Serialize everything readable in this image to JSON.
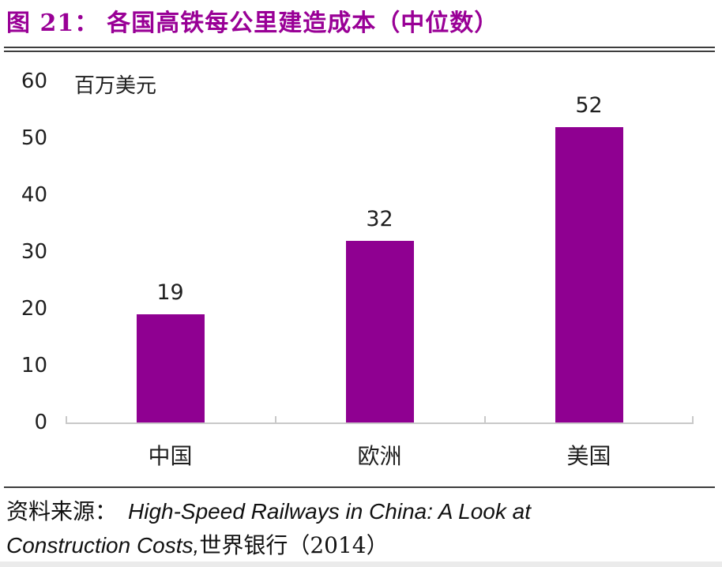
{
  "header": {
    "figure_label": "图 21：",
    "title": "各国高铁每公里建造成本（中位数）"
  },
  "chart_data": {
    "type": "bar",
    "title": "各国高铁每公里建造成本（中位数）",
    "unit_label": "百万美元",
    "categories": [
      "中国",
      "欧洲",
      "美国"
    ],
    "values": [
      19,
      32,
      52
    ],
    "ylim": [
      0,
      60
    ],
    "yticks": [
      0,
      10,
      20,
      30,
      40,
      50,
      60
    ],
    "grid": false,
    "data_labels": true,
    "legend": "none",
    "bar_color": "#8F0091"
  },
  "footer": {
    "source_prefix": "资料来源：",
    "source_line1_italic": "High-Speed Railways in China: A Look at",
    "source_line2_italic": "Construction Costs,",
    "source_line2_rest": "世界银行（2014）"
  },
  "colors": {
    "title": "#990096",
    "bar": "#8F0091",
    "separator": "#3d3d3d",
    "axis_line": "#c9c9c9",
    "text": "#1f1f1f"
  }
}
